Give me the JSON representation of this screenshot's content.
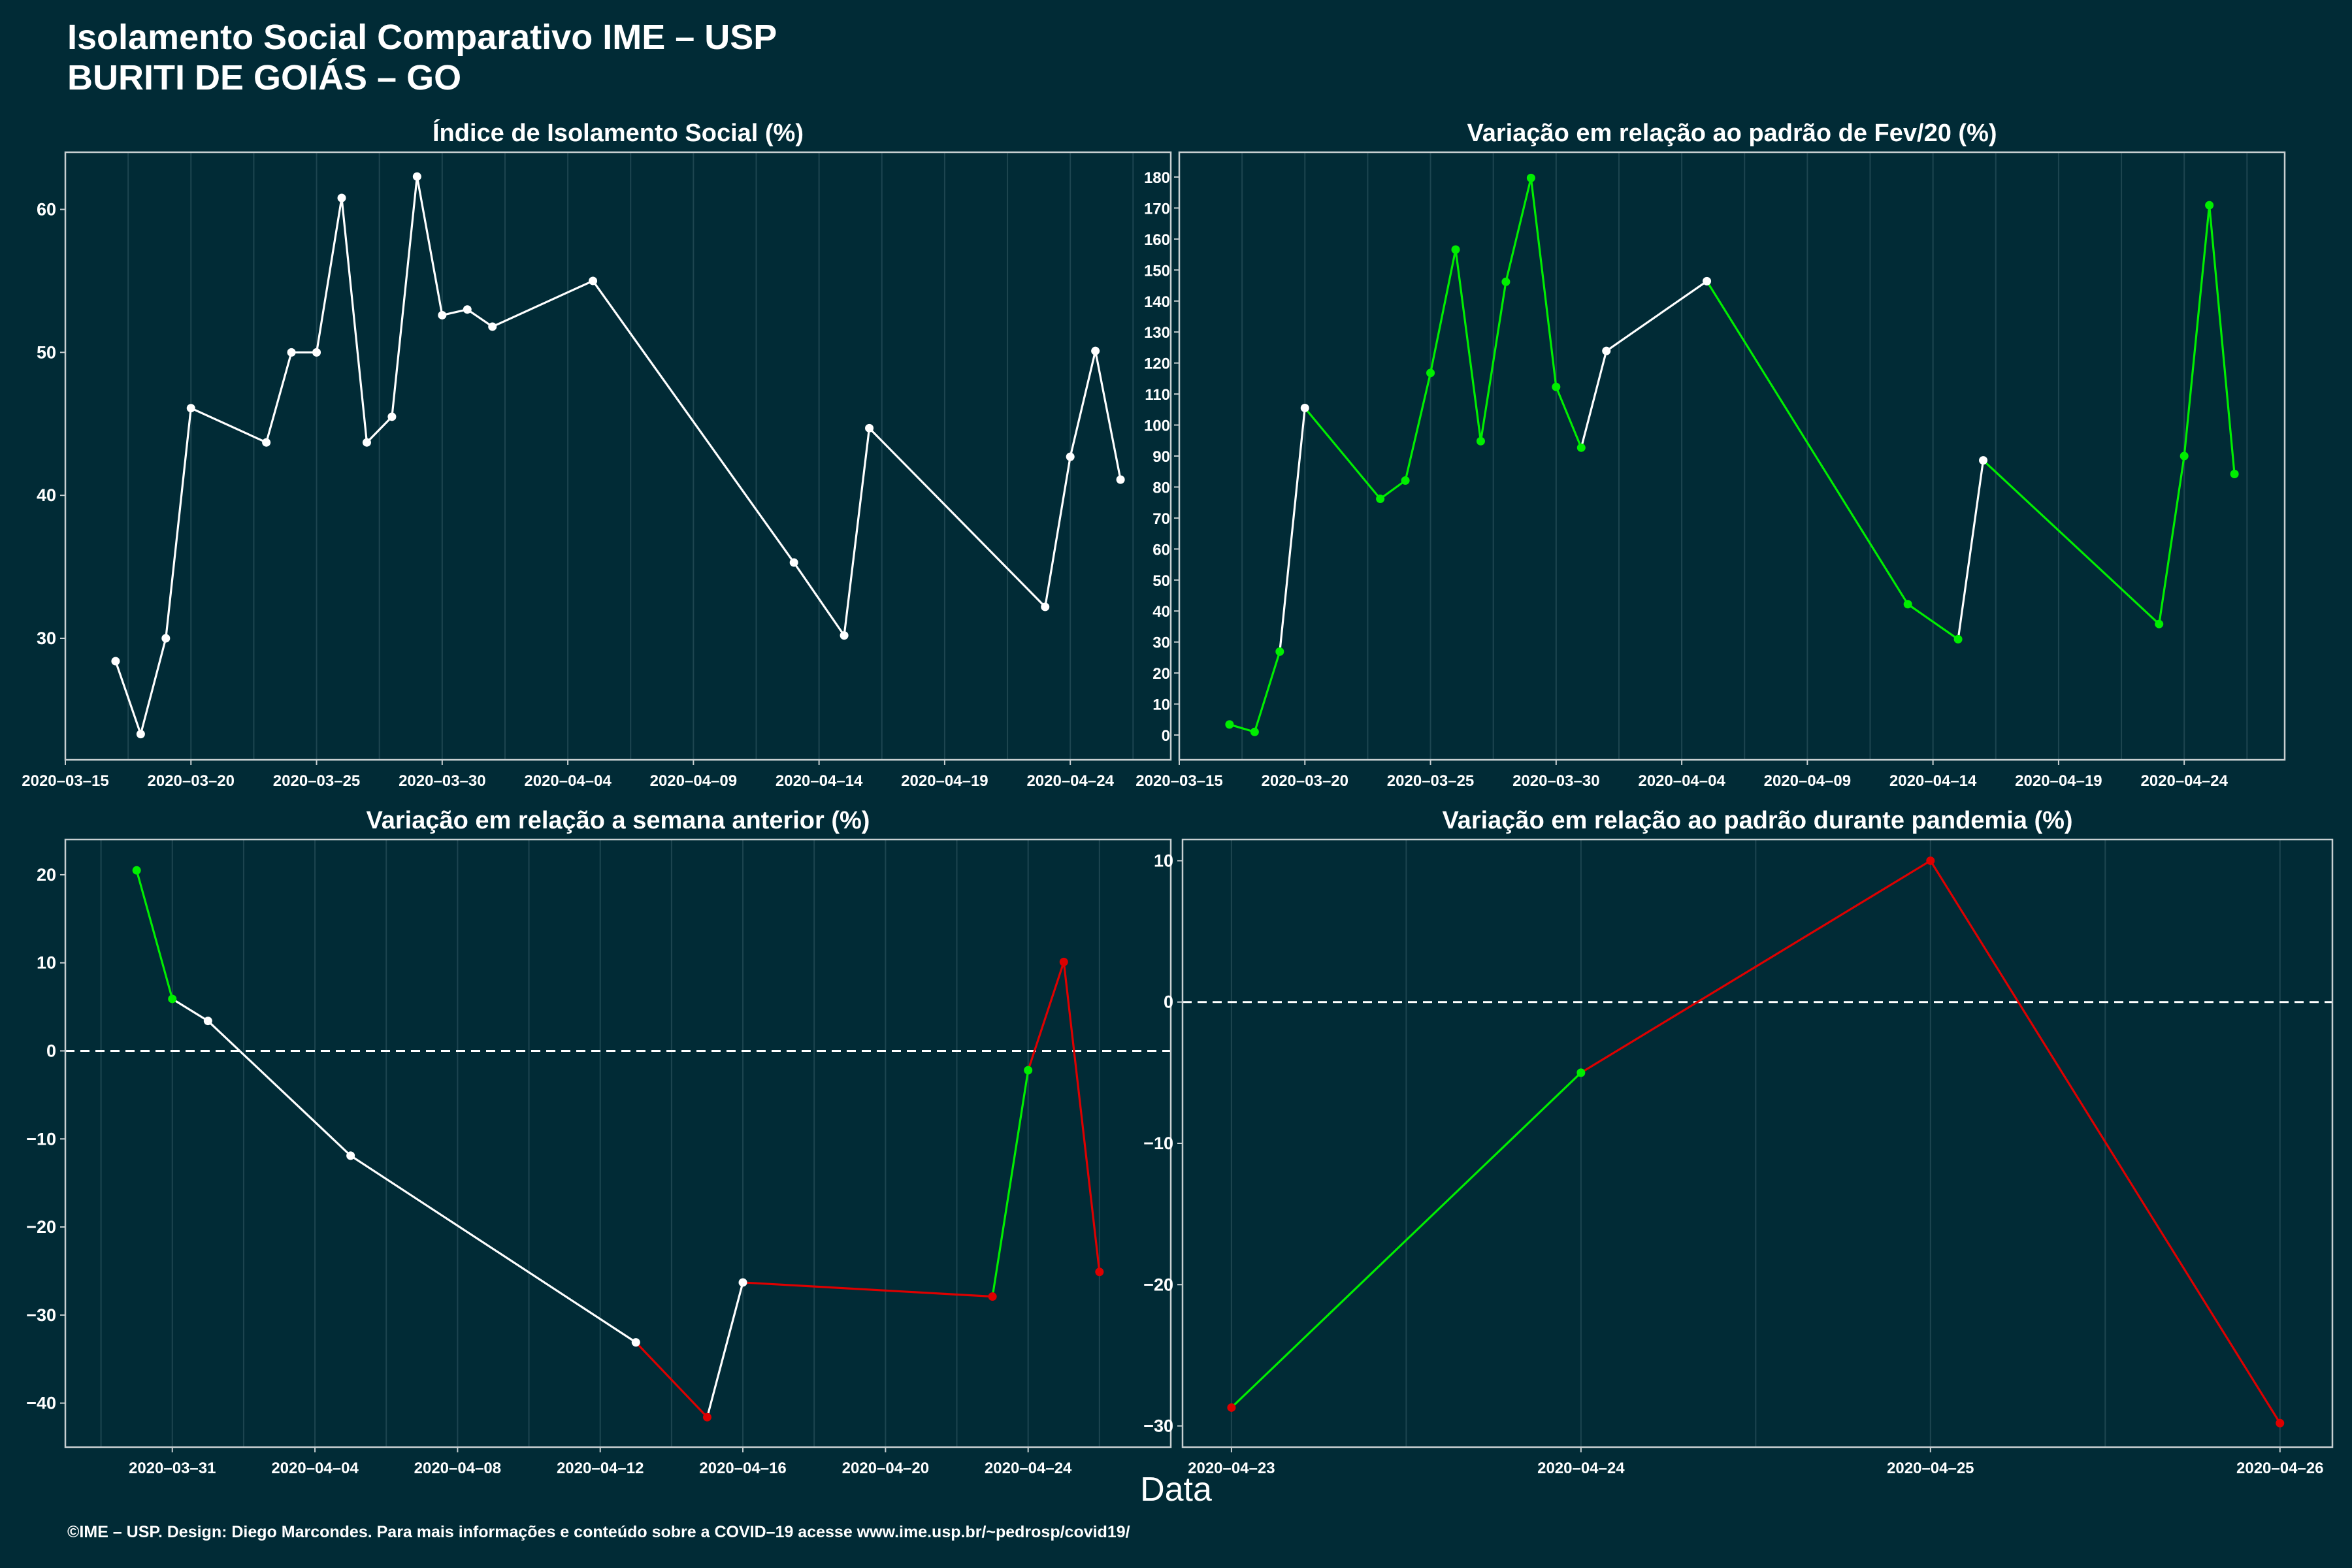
{
  "title": "Isolamento Social Comparativo IME – USP",
  "subtitle": "BURITI DE GOIÁS – GO",
  "xlabel": "Data",
  "footer": "©IME – USP. Design: Diego Marcondes. Para mais informações e conteúdo sobre a COVID–19 acesse www.ime.usp.br/~pedrosp/covid19/",
  "colors": {
    "background": "#012b36",
    "axis": "#c8cfd1",
    "grid": "#1d4550",
    "line_neutral": "#ffffff",
    "line_up": "#00ee00",
    "line_down": "#dd0000"
  },
  "chart_data": [
    {
      "type": "line",
      "title": "Índice de Isolamento Social (%)",
      "x_type": "date",
      "xlim": [
        "2020-03-15",
        "2020-04-28"
      ],
      "xticks": [
        "2020-03-15",
        "2020-03-20",
        "2020-03-25",
        "2020-03-30",
        "2020-04-04",
        "2020-04-09",
        "2020-04-14",
        "2020-04-19",
        "2020-04-24"
      ],
      "ylim": [
        21.5,
        64
      ],
      "yticks": [
        30,
        40,
        50,
        60
      ],
      "grid": true,
      "series": [
        {
          "x": [
            "2020-03-17",
            "2020-03-18",
            "2020-03-19",
            "2020-03-20",
            "2020-03-23",
            "2020-03-24",
            "2020-03-25",
            "2020-03-26",
            "2020-03-27",
            "2020-03-28",
            "2020-03-29",
            "2020-03-30",
            "2020-03-31",
            "2020-04-01",
            "2020-04-05",
            "2020-04-13",
            "2020-04-15",
            "2020-04-16",
            "2020-04-23",
            "2020-04-24",
            "2020-04-25",
            "2020-04-26"
          ],
          "y": [
            28.4,
            23.3,
            30.0,
            46.1,
            43.7,
            50.0,
            50.0,
            60.8,
            43.7,
            45.5,
            62.3,
            52.6,
            53.0,
            51.8,
            55.0,
            35.3,
            30.2,
            44.7,
            32.2,
            42.7,
            50.1,
            41.1
          ],
          "colors": [
            "white",
            "white",
            "white",
            "white",
            "white",
            "white",
            "white",
            "white",
            "white",
            "white",
            "white",
            "white",
            "white",
            "white",
            "white",
            "white",
            "white",
            "white",
            "white",
            "white",
            "white",
            "white"
          ]
        }
      ]
    },
    {
      "type": "line",
      "title": "Variação em relação ao padrão de Fev/20 (%)",
      "x_type": "date",
      "xlim": [
        "2020-03-15",
        "2020-04-28"
      ],
      "xticks": [
        "2020-03-15",
        "2020-03-20",
        "2020-03-25",
        "2020-03-30",
        "2020-04-04",
        "2020-04-09",
        "2020-04-14",
        "2020-04-19",
        "2020-04-24"
      ],
      "ylim": [
        -8,
        188
      ],
      "yticks": [
        0,
        10,
        20,
        30,
        40,
        50,
        60,
        70,
        80,
        90,
        100,
        110,
        120,
        130,
        140,
        150,
        160,
        170,
        180
      ],
      "grid": true,
      "series": [
        {
          "x": [
            "2020-03-17",
            "2020-03-18",
            "2020-03-19",
            "2020-03-20",
            "2020-03-23",
            "2020-03-24",
            "2020-03-25",
            "2020-03-26",
            "2020-03-27",
            "2020-03-28",
            "2020-03-29",
            "2020-03-30",
            "2020-03-31",
            "2020-04-01",
            "2020-04-05",
            "2020-04-13",
            "2020-04-15",
            "2020-04-16",
            "2020-04-23",
            "2020-04-24",
            "2020-04-25",
            "2020-04-26"
          ],
          "y": [
            3.4,
            1.0,
            26.9,
            105.5,
            76.2,
            82.1,
            116.8,
            156.6,
            94.8,
            146.2,
            179.7,
            112.3,
            92.7,
            123.9,
            146.4,
            42.2,
            30.9,
            88.6,
            35.8,
            90.0,
            170.9,
            84.2
          ],
          "colors": [
            "green",
            "green",
            "green",
            "white",
            "green",
            "green",
            "green",
            "green",
            "green",
            "green",
            "green",
            "green",
            "green",
            "white",
            "white",
            "green",
            "green",
            "white",
            "green",
            "green",
            "green",
            "green"
          ]
        }
      ]
    },
    {
      "type": "line",
      "title": "Variação em relação a semana anterior (%)",
      "x_type": "date",
      "xlim": [
        "2020-03-28",
        "2020-04-28"
      ],
      "xticks": [
        "2020-03-31",
        "2020-04-04",
        "2020-04-08",
        "2020-04-12",
        "2020-04-16",
        "2020-04-20",
        "2020-04-24"
      ],
      "ylim": [
        -45,
        24
      ],
      "yticks": [
        -40,
        -30,
        -20,
        -10,
        0,
        10,
        20
      ],
      "reference_line": 0,
      "grid": true,
      "series": [
        {
          "x": [
            "2020-03-30",
            "2020-03-31",
            "2020-04-01",
            "2020-04-05",
            "2020-04-13",
            "2020-04-15",
            "2020-04-16",
            "2020-04-23",
            "2020-04-24",
            "2020-04-25",
            "2020-04-26"
          ],
          "y": [
            20.5,
            5.9,
            3.4,
            -11.9,
            -33.1,
            -41.6,
            -26.3,
            -27.9,
            -2.2,
            10.1,
            -25.1
          ],
          "colors": [
            "green",
            "green",
            "white",
            "white",
            "white",
            "red",
            "white",
            "red",
            "green",
            "red",
            "red"
          ]
        }
      ]
    },
    {
      "type": "line",
      "title": "Variação em relação ao padrão durante pandemia (%)",
      "x_type": "date",
      "xlim": [
        "2020-04-22.86",
        "2020-04-26.15"
      ],
      "xticks": [
        "2020-04-23",
        "2020-04-24",
        "2020-04-25",
        "2020-04-26"
      ],
      "ylim": [
        -31.5,
        11.5
      ],
      "yticks": [
        -30,
        -20,
        -10,
        0,
        10
      ],
      "reference_line": 0,
      "grid": true,
      "series": [
        {
          "x": [
            "2020-04-23",
            "2020-04-24",
            "2020-04-25",
            "2020-04-26"
          ],
          "y": [
            -28.7,
            -5.0,
            10.0,
            -29.8
          ],
          "colors": [
            "red",
            "green",
            "red",
            "red"
          ]
        }
      ]
    }
  ]
}
